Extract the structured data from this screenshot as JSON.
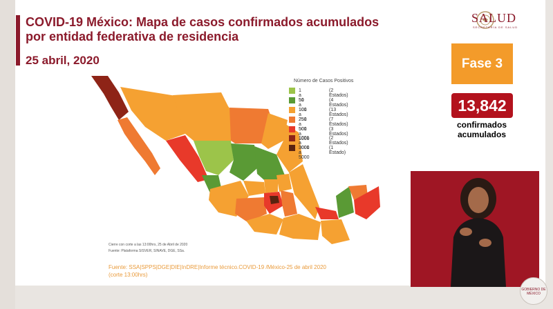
{
  "header": {
    "title_line1": "COVID-19 México: Mapa de casos confirmados acumulados",
    "title_line2": "por entidad federativa de residencia",
    "date": "25 abril, 2020"
  },
  "logo": {
    "name": "SALUD",
    "subtitle": "SECRETARÍA DE SALUD",
    "icon": "national-emblem-icon"
  },
  "phase": {
    "label": "Fase 3",
    "color": "#f39b2a"
  },
  "cases": {
    "count": "13,842",
    "label_line1": "confirmados",
    "label_line2": "acumulados",
    "color": "#b3121d"
  },
  "legend": {
    "title": "Número de Casos Positivos",
    "items": [
      {
        "range": "1 a 50",
        "count": "(2 Estados)",
        "color": "#9cc44a"
      },
      {
        "range": "51 a 100",
        "count": "(4 Estados)",
        "color": "#5a9a35"
      },
      {
        "range": "101 a 250",
        "count": "(13 Estados)",
        "color": "#f5a132"
      },
      {
        "range": "251 a 500",
        "count": "(7 Estados)",
        "color": "#ef7a32"
      },
      {
        "range": "501 a 1000",
        "count": "(3 Estados)",
        "color": "#e8392a"
      },
      {
        "range": "1001 a 3000",
        "count": "(2 Estados)",
        "color": "#8e2417"
      },
      {
        "range": "3001 a 5000",
        "count": "(1 Estado)",
        "color": "#5a2310"
      }
    ]
  },
  "notes": {
    "cutoff": "Cierre con corte a las 13:00hrs, 25 de Abril de 2020",
    "platform": "Fuente: Plataforma SISVER, SINAVE, DGE, SSa."
  },
  "source": {
    "line1": "Fuente: SSA|SPPS|DGE|DIE|InDRE|Informe técnico.COVID-19 /México-25 de abril 2020",
    "line2": "(corte 13:00hrs)"
  },
  "badge": {
    "text": "GOBIERNO DE MÉXICO"
  }
}
